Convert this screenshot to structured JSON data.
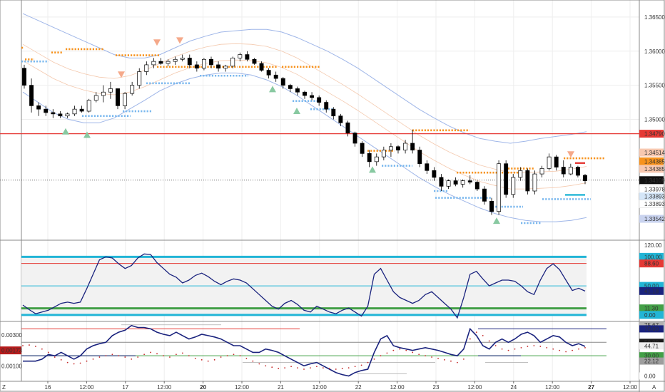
{
  "chart_data": {
    "type": "line",
    "colors": {
      "candle_up": "#ffffff",
      "candle_down": "#000000",
      "wick": "#000000",
      "band": "#9fb6e8",
      "band_inner": "#f4c9ae",
      "dot_orange": "#f7931e",
      "dot_blue": "#7ab8ee",
      "level_red": "#e53935",
      "osc_line": "#1a237e",
      "osc_cyan": "#22b5d6",
      "osc_green": "#43a047",
      "tri_up": "#88c9a1",
      "tri_down": "#f5a98a"
    },
    "time_labels": [
      "16",
      "12:00",
      "17",
      "12:00",
      "20",
      "12:00",
      "21",
      "12:00",
      "22",
      "12:00",
      "23",
      "12:00",
      "24",
      "12:00",
      "27",
      "12:00"
    ],
    "time_bold": [
      false,
      false,
      false,
      false,
      true,
      false,
      false,
      false,
      false,
      false,
      false,
      false,
      false,
      false,
      true,
      false
    ],
    "time_corner_left": "Z",
    "time_corner_right": "A",
    "price_pane": {
      "ylim": [
        1.3325,
        1.3675
      ],
      "ticks": [
        "1.36500",
        "1.36000",
        "1.35500",
        "1.35000"
      ],
      "tick_values": [
        1.365,
        1.36,
        1.355,
        1.35
      ],
      "candles": [
        [
          1.3575,
          1.358,
          1.3545,
          1.355
        ],
        [
          1.355,
          1.356,
          1.351,
          1.352
        ],
        [
          1.352,
          1.3525,
          1.3505,
          1.3515
        ],
        [
          1.3515,
          1.352,
          1.3505,
          1.351
        ],
        [
          1.351,
          1.3515,
          1.3502,
          1.3508
        ],
        [
          1.3508,
          1.3512,
          1.3502,
          1.3505
        ],
        [
          1.3505,
          1.351,
          1.3502,
          1.3508
        ],
        [
          1.3508,
          1.352,
          1.3505,
          1.3515
        ],
        [
          1.3515,
          1.352,
          1.351,
          1.3512
        ],
        [
          1.3512,
          1.353,
          1.351,
          1.3528
        ],
        [
          1.3528,
          1.354,
          1.3525,
          1.3535
        ],
        [
          1.3535,
          1.355,
          1.3525,
          1.354
        ],
        [
          1.354,
          1.3555,
          1.353,
          1.3545
        ],
        [
          1.3545,
          1.3545,
          1.3515,
          1.352
        ],
        [
          1.352,
          1.354,
          1.3515,
          1.3538
        ],
        [
          1.3538,
          1.3555,
          1.3535,
          1.355
        ],
        [
          1.355,
          1.3575,
          1.3545,
          1.357
        ],
        [
          1.357,
          1.3585,
          1.3565,
          1.358
        ],
        [
          1.358,
          1.359,
          1.3575,
          1.3585
        ],
        [
          1.3585,
          1.359,
          1.358,
          1.3582
        ],
        [
          1.3582,
          1.3588,
          1.3578,
          1.3585
        ],
        [
          1.3585,
          1.3592,
          1.358,
          1.3588
        ],
        [
          1.3588,
          1.3595,
          1.3585,
          1.359
        ],
        [
          1.359,
          1.3595,
          1.3575,
          1.358
        ],
        [
          1.358,
          1.3585,
          1.357,
          1.3575
        ],
        [
          1.3575,
          1.359,
          1.3572,
          1.3588
        ],
        [
          1.3588,
          1.3592,
          1.3575,
          1.358
        ],
        [
          1.358,
          1.3585,
          1.357,
          1.3575
        ],
        [
          1.3575,
          1.358,
          1.357,
          1.3578
        ],
        [
          1.3578,
          1.3592,
          1.3575,
          1.359
        ],
        [
          1.359,
          1.3598,
          1.3585,
          1.3595
        ],
        [
          1.3595,
          1.36,
          1.3585,
          1.3588
        ],
        [
          1.3588,
          1.359,
          1.358,
          1.3582
        ],
        [
          1.3582,
          1.3585,
          1.357,
          1.3572
        ],
        [
          1.3572,
          1.3575,
          1.356,
          1.3565
        ],
        [
          1.3565,
          1.357,
          1.3555,
          1.356
        ],
        [
          1.356,
          1.3562,
          1.3545,
          1.355
        ],
        [
          1.355,
          1.3552,
          1.354,
          1.3545
        ],
        [
          1.3545,
          1.3548,
          1.3535,
          1.354
        ],
        [
          1.354,
          1.3542,
          1.353,
          1.3535
        ],
        [
          1.3535,
          1.354,
          1.3528,
          1.3532
        ],
        [
          1.3532,
          1.3535,
          1.352,
          1.3525
        ],
        [
          1.3525,
          1.3528,
          1.351,
          1.3515
        ],
        [
          1.3515,
          1.3518,
          1.35,
          1.3505
        ],
        [
          1.3505,
          1.3508,
          1.349,
          1.3495
        ],
        [
          1.3495,
          1.3498,
          1.3475,
          1.348
        ],
        [
          1.348,
          1.3482,
          1.346,
          1.3465
        ],
        [
          1.3465,
          1.3468,
          1.3445,
          1.345
        ],
        [
          1.345,
          1.3455,
          1.343,
          1.3438
        ],
        [
          1.3438,
          1.345,
          1.3432,
          1.3445
        ],
        [
          1.3445,
          1.346,
          1.344,
          1.3455
        ],
        [
          1.3455,
          1.3465,
          1.3445,
          1.346
        ],
        [
          1.346,
          1.3462,
          1.345,
          1.3455
        ],
        [
          1.3455,
          1.347,
          1.345,
          1.3465
        ],
        [
          1.3465,
          1.3485,
          1.345,
          1.3455
        ],
        [
          1.3455,
          1.346,
          1.343,
          1.3435
        ],
        [
          1.3435,
          1.344,
          1.342,
          1.3425
        ],
        [
          1.3425,
          1.343,
          1.341,
          1.3415
        ],
        [
          1.3415,
          1.342,
          1.3395,
          1.3402
        ],
        [
          1.3402,
          1.3412,
          1.3398,
          1.341
        ],
        [
          1.341,
          1.3415,
          1.3402,
          1.3405
        ],
        [
          1.3405,
          1.3412,
          1.34,
          1.341
        ],
        [
          1.341,
          1.3418,
          1.3405,
          1.3408
        ],
        [
          1.3408,
          1.341,
          1.3395,
          1.3398
        ],
        [
          1.3398,
          1.3402,
          1.3375,
          1.338
        ],
        [
          1.338,
          1.3385,
          1.336,
          1.3365
        ],
        [
          1.3365,
          1.344,
          1.336,
          1.3435
        ],
        [
          1.3435,
          1.344,
          1.3385,
          1.339
        ],
        [
          1.339,
          1.342,
          1.3385,
          1.3415
        ],
        [
          1.3415,
          1.343,
          1.341,
          1.3425
        ],
        [
          1.3425,
          1.3428,
          1.339,
          1.3395
        ],
        [
          1.3395,
          1.3425,
          1.339,
          1.342
        ],
        [
          1.342,
          1.3432,
          1.3415,
          1.3428
        ],
        [
          1.3428,
          1.345,
          1.3425,
          1.3445
        ],
        [
          1.3445,
          1.3448,
          1.3425,
          1.343
        ],
        [
          1.343,
          1.344,
          1.3415,
          1.342
        ],
        [
          1.342,
          1.3435,
          1.3418,
          1.343
        ],
        [
          1.343,
          1.3432,
          1.3415,
          1.3418
        ],
        [
          1.3418,
          1.342,
          1.3405,
          1.341
        ]
      ],
      "upper_band": [
        1.3655,
        1.3645,
        1.3635,
        1.3625,
        1.3615,
        1.3605,
        1.3595,
        1.359,
        1.359,
        1.3595,
        1.3605,
        1.3615,
        1.3622,
        1.3628,
        1.363,
        1.3632,
        1.3632,
        1.3628,
        1.362,
        1.361,
        1.36,
        1.3588,
        1.3575,
        1.356,
        1.3545,
        1.353,
        1.3515,
        1.3502,
        1.349,
        1.348,
        1.3472,
        1.3468,
        1.3465,
        1.3468,
        1.3472,
        1.3475,
        1.3478,
        1.3482
      ],
      "lower_band": [
        1.354,
        1.3525,
        1.351,
        1.35,
        1.3495,
        1.3495,
        1.3502,
        1.3515,
        1.3528,
        1.3542,
        1.3552,
        1.356,
        1.3565,
        1.3568,
        1.3568,
        1.3565,
        1.3558,
        1.3548,
        1.3535,
        1.352,
        1.3505,
        1.349,
        1.3475,
        1.346,
        1.3445,
        1.343,
        1.3415,
        1.3402,
        1.339,
        1.338,
        1.337,
        1.3362,
        1.3356,
        1.3352,
        1.335,
        1.335,
        1.3352,
        1.3356
      ],
      "mid_line": [
        1.3598,
        1.3585,
        1.3572,
        1.3562,
        1.3555,
        1.355,
        1.3548,
        1.3552,
        1.356,
        1.357,
        1.358,
        1.3588,
        1.3594,
        1.3598,
        1.3599,
        1.3598,
        1.3595,
        1.3588,
        1.3578,
        1.3565,
        1.3552,
        1.3539,
        1.3525,
        1.351,
        1.3495,
        1.348,
        1.3465,
        1.3452,
        1.344,
        1.343,
        1.3421,
        1.3415,
        1.341,
        1.341,
        1.3411,
        1.3412,
        1.3415,
        1.3419
      ],
      "levels": [
        {
          "value": 1.3479,
          "label": "1.34790",
          "color": "#e53935",
          "line": true
        },
        {
          "value": 1.34514,
          "label": "1.34514",
          "color": "#f7c8b0",
          "line": false
        },
        {
          "value": 1.34385,
          "label": "1.34385",
          "color": "#f7931e",
          "line": false
        },
        {
          "value": 1.34275,
          "label": "1.34385",
          "color": "#f7c8b0",
          "line": false
        },
        {
          "value": 1.34109,
          "label": "1.34109",
          "color": "#111111",
          "line": false
        },
        {
          "value": 1.33978,
          "label": "1.33978",
          "color": "#ffffff",
          "line": false
        },
        {
          "value": 1.3387,
          "label": "1.33893",
          "color": "#d4e6f8",
          "line": false
        },
        {
          "value": 1.3376,
          "label": "1.33893",
          "color": "#ffffff",
          "line": false
        },
        {
          "value": 1.33542,
          "label": "1.33542",
          "color": "#c9d3ef",
          "line": false
        }
      ],
      "dotted_current": 1.34109,
      "resistance_segments": [
        [
          0,
          5,
          1.3605
        ],
        [
          5,
          20,
          1.3588
        ],
        [
          42,
          60,
          1.3598
        ],
        [
          62,
          118,
          1.3603
        ],
        [
          132,
          195,
          1.3594
        ],
        [
          190,
          255,
          1.3577
        ],
        [
          252,
          305,
          1.3577
        ],
        [
          305,
          360,
          1.3577
        ],
        [
          365,
          420,
          1.3577
        ],
        [
          485,
          525,
          1.3454
        ],
        [
          548,
          630,
          1.3484
        ],
        [
          610,
          700,
          1.3422
        ],
        [
          682,
          720,
          1.3428
        ],
        [
          760,
          820,
          1.3443
        ]
      ],
      "support_segments": [
        [
          0,
          40,
          1.3585
        ],
        [
          85,
          155,
          1.3505
        ],
        [
          142,
          185,
          1.3512
        ],
        [
          175,
          240,
          1.3553
        ],
        [
          250,
          320,
          1.3564
        ],
        [
          380,
          420,
          1.3527
        ],
        [
          405,
          440,
          1.3515
        ],
        [
          505,
          550,
          1.3432
        ],
        [
          578,
          600,
          1.3395
        ],
        [
          580,
          660,
          1.3385
        ],
        [
          660,
          705,
          1.3372
        ],
        [
          700,
          730,
          1.3348
        ],
        [
          730,
          800,
          1.3383
        ]
      ],
      "arrows_up": [
        [
          62,
          1.3483
        ],
        [
          92,
          1.3478
        ],
        [
          352,
          1.3545
        ],
        [
          386,
          1.3513
        ],
        [
          492,
          1.3427
        ],
        [
          666,
          1.3352
        ]
      ],
      "arrows_down": [
        [
          140,
          1.3565
        ],
        [
          190,
          1.3612
        ],
        [
          222,
          1.3615
        ],
        [
          770,
          1.3448
        ]
      ],
      "markers": [
        {
          "y": 1.3436,
          "x1": 806,
          "x2": 820,
          "color": "#e53935"
        },
        {
          "y": 1.33893,
          "x1": 792,
          "x2": 820,
          "color": "#22b5d6"
        }
      ]
    },
    "osc_pane": {
      "ylim": [
        -10,
        125
      ],
      "ticks": [
        "120.00",
        "40.00"
      ],
      "tick_values": [
        120,
        40
      ],
      "levels": [
        {
          "value": 100,
          "label": "100.00",
          "color": "#22b5d6",
          "thick": true
        },
        {
          "value": 88.6,
          "label": "88.60",
          "color": "#e53935",
          "thick": false
        },
        {
          "value": 50,
          "label": "50.00",
          "color": "#22b5d6",
          "thick": false
        },
        {
          "value": 41.18,
          "label": "41.18",
          "color": "#1a237e",
          "thick": false
        },
        {
          "value": 11.3,
          "label": "11.30",
          "color": "#43a047",
          "thick": true
        },
        {
          "value": 0,
          "label": "0.00",
          "color": "#22b5d6",
          "thick": true
        }
      ],
      "values": [
        17,
        9,
        2,
        5,
        8,
        14,
        20,
        22,
        20,
        22,
        45,
        70,
        95,
        100,
        98,
        88,
        80,
        85,
        98,
        105,
        104,
        90,
        80,
        70,
        65,
        55,
        60,
        68,
        72,
        66,
        58,
        52,
        58,
        62,
        60,
        55,
        45,
        35,
        25,
        15,
        10,
        20,
        25,
        18,
        8,
        5,
        15,
        10,
        5,
        2,
        8,
        12,
        5,
        -2,
        15,
        70,
        80,
        60,
        40,
        30,
        25,
        20,
        25,
        35,
        40,
        30,
        20,
        10,
        -5,
        30,
        70,
        75,
        62,
        50,
        55,
        60,
        60,
        58,
        50,
        40,
        35,
        60,
        80,
        88,
        78,
        60,
        42,
        46,
        41
      ]
    },
    "dual_pane": {
      "ylim": [
        -8,
        80
      ],
      "left_ticks": [
        "0.00300",
        "0.00100"
      ],
      "left_tick_values": [
        61,
        15
      ],
      "left_badge": "0.00173",
      "left_badge_value": 38,
      "right_ticks": [
        "75.67",
        "70.00",
        "50.00",
        "44.71",
        "30.00",
        "22.12",
        "0.00"
      ],
      "right_tick_values": [
        75.67,
        70,
        50,
        44.71,
        30,
        22.12,
        0
      ],
      "right_tick_colors": [
        "#b0b0b0",
        "#1a237e",
        "#1a1a1a",
        "#eeeeee",
        "#43a047",
        "#9e9e9e",
        "#ffffff"
      ],
      "hlines": [
        {
          "value": 70,
          "color": "#e53935",
          "x1": 0,
          "x2": 390
        },
        {
          "value": 70,
          "color": "#1a237e",
          "x1": 640,
          "x2": 820
        },
        {
          "value": 50,
          "color": "#888888",
          "x1": 0,
          "x2": 820
        },
        {
          "value": 30,
          "color": "#43a047",
          "x1": 0,
          "x2": 820
        },
        {
          "value": 30,
          "color": "#1a237e",
          "x1": 0,
          "x2": 160
        },
        {
          "value": 30,
          "color": "#1a237e",
          "x1": 640,
          "x2": 700
        }
      ],
      "values": [
        22,
        22,
        22,
        25,
        32,
        30,
        35,
        30,
        25,
        30,
        40,
        45,
        48,
        50,
        60,
        65,
        68,
        75,
        72,
        72,
        70,
        65,
        62,
        60,
        65,
        60,
        55,
        58,
        62,
        60,
        58,
        55,
        50,
        45,
        45,
        40,
        35,
        35,
        40,
        38,
        35,
        30,
        25,
        20,
        15,
        18,
        20,
        15,
        10,
        5,
        2,
        0,
        5,
        8,
        10,
        35,
        55,
        60,
        45,
        42,
        40,
        38,
        40,
        42,
        40,
        38,
        35,
        32,
        30,
        40,
        70,
        60,
        45,
        40,
        50,
        55,
        50,
        55,
        62,
        65,
        60,
        50,
        55,
        60,
        58,
        50,
        45,
        48,
        44
      ],
      "dots": [
        45,
        46,
        44,
        40,
        35,
        28,
        24,
        20,
        18,
        19,
        22,
        25,
        28,
        30,
        32,
        30,
        28,
        25,
        28,
        32,
        35,
        33,
        30,
        28,
        32,
        34,
        30,
        26,
        24,
        22,
        24,
        28,
        30,
        32,
        30,
        26,
        22,
        18,
        15,
        13,
        11,
        12,
        14,
        12,
        10,
        12,
        14,
        12,
        11,
        10,
        11,
        12,
        14,
        16,
        20,
        25,
        30,
        34,
        38,
        40,
        38,
        35,
        32,
        30,
        28,
        26,
        24,
        22,
        20,
        25,
        55,
        65,
        60,
        52,
        45,
        40,
        38,
        40,
        42,
        44,
        45,
        44,
        42,
        40,
        38,
        36,
        38,
        40,
        42
      ]
    }
  }
}
